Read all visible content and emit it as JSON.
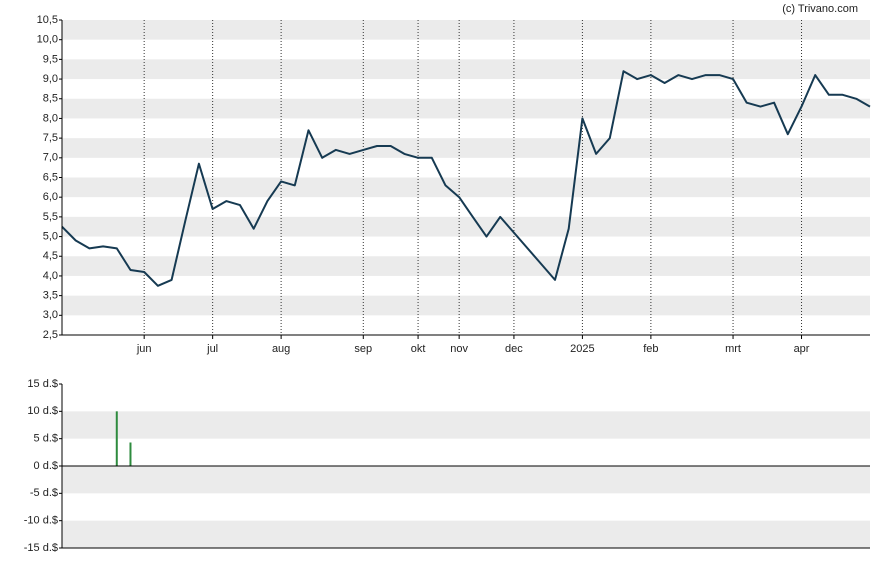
{
  "source": "(c) Trivano.com",
  "chart_data": [
    {
      "type": "line",
      "categories": [
        null,
        null,
        null,
        null,
        null,
        null,
        "jun",
        null,
        null,
        null,
        null,
        "jul",
        null,
        null,
        null,
        null,
        "aug",
        null,
        null,
        null,
        null,
        null,
        "sep",
        null,
        null,
        null,
        "okt",
        null,
        null,
        "nov",
        null,
        null,
        null,
        "dec",
        null,
        null,
        null,
        null,
        "2025",
        null,
        null,
        null,
        null,
        "feb",
        null,
        null,
        null,
        null,
        null,
        "mrt",
        null,
        null,
        null,
        null,
        "apr",
        null,
        null,
        null,
        null,
        null
      ],
      "series": [
        {
          "color": "#163a52",
          "values": [
            5.25,
            4.9,
            4.7,
            4.75,
            4.7,
            4.15,
            4.1,
            3.75,
            3.9,
            5.4,
            6.85,
            5.7,
            5.9,
            5.8,
            5.2,
            5.9,
            6.4,
            6.3,
            7.7,
            7.0,
            7.2,
            7.1,
            7.2,
            7.3,
            7.3,
            7.1,
            7.0,
            7.0,
            6.3,
            6.0,
            5.5,
            5.0,
            5.5,
            5.1,
            4.7,
            4.3,
            3.9,
            5.2,
            8.0,
            7.1,
            7.5,
            9.2,
            9.0,
            9.1,
            8.9,
            9.1,
            9.0,
            9.1,
            9.1,
            9.0,
            8.4,
            8.3,
            8.4,
            7.6,
            8.3,
            9.1,
            8.6,
            8.6,
            8.5,
            8.3
          ]
        }
      ],
      "ylim": [
        2.5,
        10.5
      ],
      "yticks": [
        {
          "value": 2.5,
          "label": "2,5"
        },
        {
          "value": 3,
          "label": "3,0"
        },
        {
          "value": 3.5,
          "label": "3,5"
        },
        {
          "value": 4,
          "label": "4,0"
        },
        {
          "value": 4.5,
          "label": "4,5"
        },
        {
          "value": 5,
          "label": "5,0"
        },
        {
          "value": 5.5,
          "label": "5,5"
        },
        {
          "value": 6,
          "label": "6,0"
        },
        {
          "value": 6.5,
          "label": "6,5"
        },
        {
          "value": 7,
          "label": "7,0"
        },
        {
          "value": 7.5,
          "label": "7,5"
        },
        {
          "value": 8,
          "label": "8,0"
        },
        {
          "value": 8.5,
          "label": "8,5"
        },
        {
          "value": 9,
          "label": "9,0"
        },
        {
          "value": 9.5,
          "label": "9,5"
        },
        {
          "value": 10,
          "label": "10,0"
        },
        {
          "value": 10.5,
          "label": "10,5"
        }
      ],
      "grid": true
    },
    {
      "type": "bar",
      "color": "#2e8b3e",
      "values": [
        null,
        null,
        null,
        null,
        10,
        4.3,
        null,
        null,
        null,
        null,
        null,
        null,
        null,
        null,
        null,
        null,
        null,
        null,
        null,
        null,
        null,
        null,
        null,
        null,
        null,
        null,
        null,
        null,
        null,
        null,
        null,
        null,
        null,
        null,
        null,
        null,
        null,
        null,
        null,
        null,
        null,
        null,
        null,
        null,
        null,
        null,
        null,
        null,
        null,
        null,
        null,
        null,
        null,
        null,
        null,
        null,
        null,
        null,
        null,
        null
      ],
      "ylim": [
        -15,
        15
      ],
      "yticks": [
        {
          "value": -15,
          "label": "-15 d.$"
        },
        {
          "value": -10,
          "label": "-10 d.$"
        },
        {
          "value": -5,
          "label": "-5 d.$"
        },
        {
          "value": 0,
          "label": "0 d.$"
        },
        {
          "value": 5,
          "label": "5 d.$"
        },
        {
          "value": 10,
          "label": "10 d.$"
        },
        {
          "value": 15,
          "label": "15 d.$"
        }
      ],
      "grid": true
    }
  ]
}
